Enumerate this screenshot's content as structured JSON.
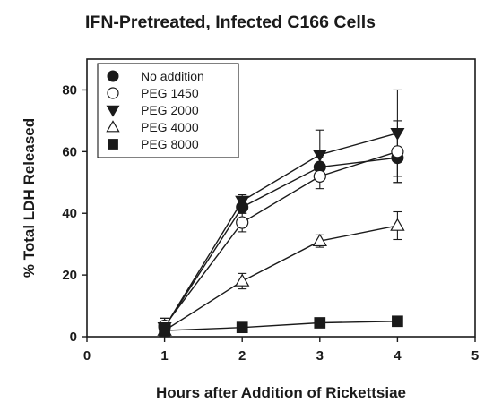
{
  "chart_data": {
    "type": "line",
    "title": "IFN-Pretreated, Infected C166 Cells",
    "xlabel": "Hours after Addition of Rickettsiae",
    "ylabel": "% Total LDH Released",
    "xlim": [
      0,
      5
    ],
    "ylim": [
      0,
      90
    ],
    "xticks": [
      0,
      1,
      2,
      3,
      4,
      5
    ],
    "yticks": [
      0,
      20,
      40,
      60,
      80
    ],
    "grid": false,
    "legend_position": "top-left",
    "x": [
      1,
      2,
      3,
      4
    ],
    "series": [
      {
        "name": "No addition",
        "marker": "filled-circle",
        "values": [
          3,
          42,
          55,
          58
        ],
        "errors": [
          3,
          2,
          3,
          8
        ]
      },
      {
        "name": "PEG 1450",
        "marker": "open-circle",
        "values": [
          3.5,
          37,
          52,
          60
        ],
        "errors": [
          2.5,
          3,
          4,
          10
        ]
      },
      {
        "name": "PEG 2000",
        "marker": "filled-triangle-down",
        "values": [
          3,
          44,
          59,
          66
        ],
        "errors": [
          2,
          2,
          8,
          14
        ]
      },
      {
        "name": "PEG 4000",
        "marker": "open-triangle-up",
        "values": [
          2,
          18,
          31,
          36
        ],
        "errors": [
          1,
          2.5,
          2,
          4.5
        ]
      },
      {
        "name": "PEG 8000",
        "marker": "filled-square",
        "values": [
          2,
          3,
          4.5,
          5
        ],
        "errors": [
          0.5,
          0.5,
          0.5,
          0.5
        ]
      }
    ]
  }
}
